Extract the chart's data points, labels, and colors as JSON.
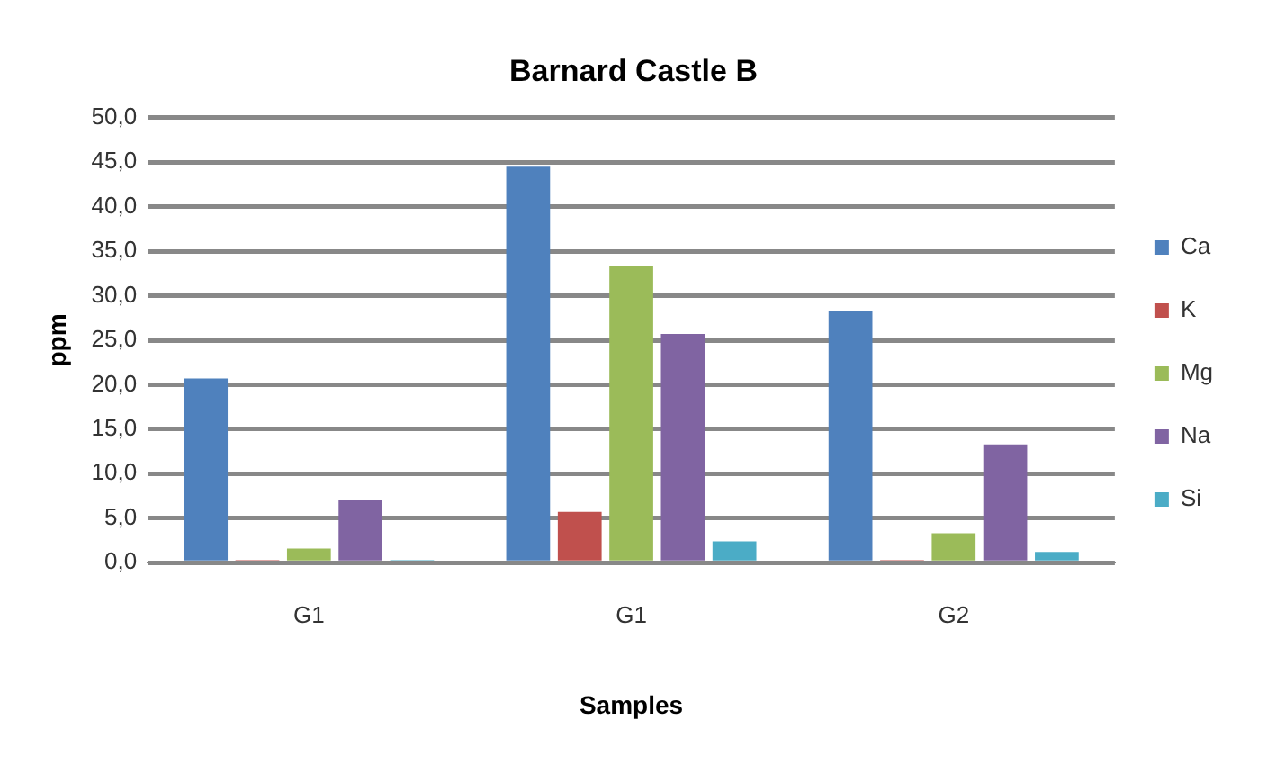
{
  "chart_data": {
    "type": "bar",
    "title": "Barnard Castle B",
    "xlabel": "Samples",
    "ylabel": "ppm",
    "categories": [
      "G1",
      "G1",
      "G2"
    ],
    "series": [
      {
        "name": "Ca",
        "color": "#4f81bd",
        "values": [
          20.7,
          44.5,
          28.3
        ]
      },
      {
        "name": "K",
        "color": "#c0504d",
        "values": [
          0.3,
          5.7,
          0.3
        ]
      },
      {
        "name": "Mg",
        "color": "#9bbb59",
        "values": [
          1.6,
          33.3,
          3.3
        ]
      },
      {
        "name": "Na",
        "color": "#8064a2",
        "values": [
          7.1,
          25.7,
          13.3
        ]
      },
      {
        "name": "Si",
        "color": "#4bacc6",
        "values": [
          0.3,
          2.4,
          1.2
        ]
      }
    ],
    "ylim": [
      0,
      50
    ],
    "yticks": [
      {
        "value": 0,
        "label": "0,0"
      },
      {
        "value": 5,
        "label": "5,0"
      },
      {
        "value": 10,
        "label": "10,0"
      },
      {
        "value": 15,
        "label": "15,0"
      },
      {
        "value": 20,
        "label": "20,0"
      },
      {
        "value": 25,
        "label": "25,0"
      },
      {
        "value": 30,
        "label": "30,0"
      },
      {
        "value": 35,
        "label": "35,0"
      },
      {
        "value": 40,
        "label": "40,0"
      },
      {
        "value": 45,
        "label": "45,0"
      },
      {
        "value": 50,
        "label": "50,0"
      }
    ],
    "grid": "y",
    "legend": "right"
  }
}
